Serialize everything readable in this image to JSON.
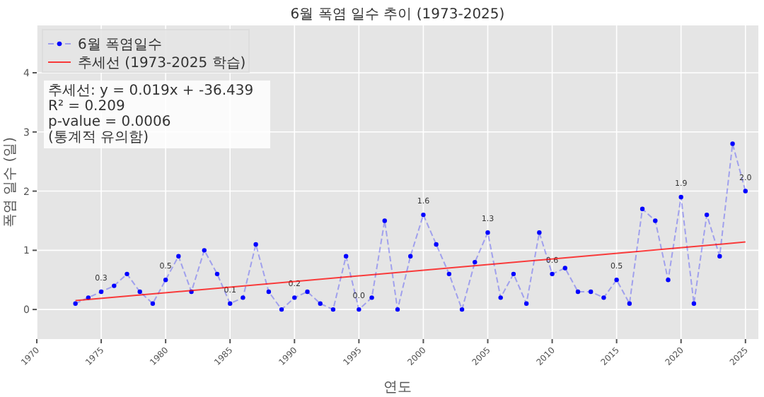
{
  "chart_data": {
    "type": "line",
    "title": "6월 폭염 일수 추이 (1973-2025)",
    "xlabel": "연도",
    "ylabel": "폭염 일수 (일)",
    "x": [
      1973,
      1974,
      1975,
      1976,
      1977,
      1978,
      1979,
      1980,
      1981,
      1982,
      1983,
      1984,
      1985,
      1986,
      1987,
      1988,
      1989,
      1990,
      1991,
      1992,
      1993,
      1994,
      1995,
      1996,
      1997,
      1998,
      1999,
      2000,
      2001,
      2002,
      2003,
      2004,
      2005,
      2006,
      2007,
      2008,
      2009,
      2010,
      2011,
      2012,
      2013,
      2014,
      2015,
      2016,
      2017,
      2018,
      2019,
      2020,
      2021,
      2022,
      2023,
      2024,
      2025
    ],
    "xlim": [
      1970,
      2026
    ],
    "ylim": [
      -0.5,
      4.8
    ],
    "xticks": [
      1970,
      1975,
      1980,
      1985,
      1990,
      1995,
      2000,
      2005,
      2010,
      2015,
      2020,
      2025
    ],
    "yticks": [
      0,
      1,
      2,
      3,
      4
    ],
    "grid": true,
    "legend": "top left",
    "series": [
      {
        "name": "6월 폭염일수",
        "color": "#0000ff",
        "marker": "circle",
        "line_style": "dashed",
        "values": [
          0.1,
          0.2,
          0.3,
          0.4,
          0.6,
          0.3,
          0.1,
          0.5,
          0.9,
          0.3,
          1.0,
          0.6,
          0.1,
          0.2,
          1.1,
          0.3,
          0.0,
          0.2,
          0.3,
          0.1,
          0.0,
          0.9,
          0.0,
          0.2,
          1.5,
          0.0,
          0.9,
          1.6,
          1.1,
          0.6,
          0.0,
          0.8,
          1.3,
          0.2,
          0.6,
          0.1,
          1.3,
          0.6,
          0.7,
          0.3,
          0.3,
          0.2,
          0.5,
          0.1,
          1.7,
          1.5,
          0.5,
          1.9,
          0.1,
          1.6,
          0.9,
          2.8,
          2.0
        ],
        "value_labels": [
          null,
          null,
          "0.3",
          null,
          null,
          null,
          null,
          "0.5",
          null,
          null,
          null,
          null,
          "0.1",
          null,
          null,
          null,
          null,
          "0.2",
          null,
          null,
          null,
          null,
          "0.0",
          null,
          null,
          null,
          null,
          "1.6",
          null,
          null,
          null,
          null,
          "1.3",
          null,
          null,
          null,
          null,
          "0.6",
          null,
          null,
          null,
          null,
          "0.5",
          null,
          null,
          null,
          null,
          "1.9",
          null,
          null,
          null,
          null,
          "2.0"
        ]
      },
      {
        "name": "추세선 (1973-2025 학습)",
        "type": "line",
        "color": "#ff0000",
        "marker": "none",
        "line_style": "solid",
        "x": [
          1973,
          2025
        ],
        "values": [
          0.15,
          1.14
        ]
      }
    ],
    "annotations": [
      "추세선: y = 0.019x + -36.439\nR² = 0.209\np-value = 0.0006\n(통계적 유의함)"
    ]
  }
}
